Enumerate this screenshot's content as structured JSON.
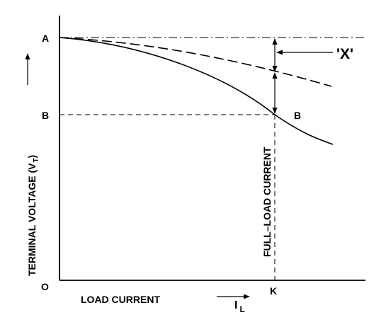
{
  "axes": {
    "x_label": "LOAD CURRENT",
    "x_symbol": "I",
    "x_symbol_sub": "L",
    "y_label_main": "TERMINAL VOLTAGE (V",
    "y_label_close": ")"
  },
  "points": {
    "origin": "O",
    "a": "A",
    "b_axis": "B",
    "b_curve": "B",
    "k": "K"
  },
  "annotations": {
    "x_marker": "'X'",
    "full_load": "FULL–LOAD CURRENT"
  }
}
